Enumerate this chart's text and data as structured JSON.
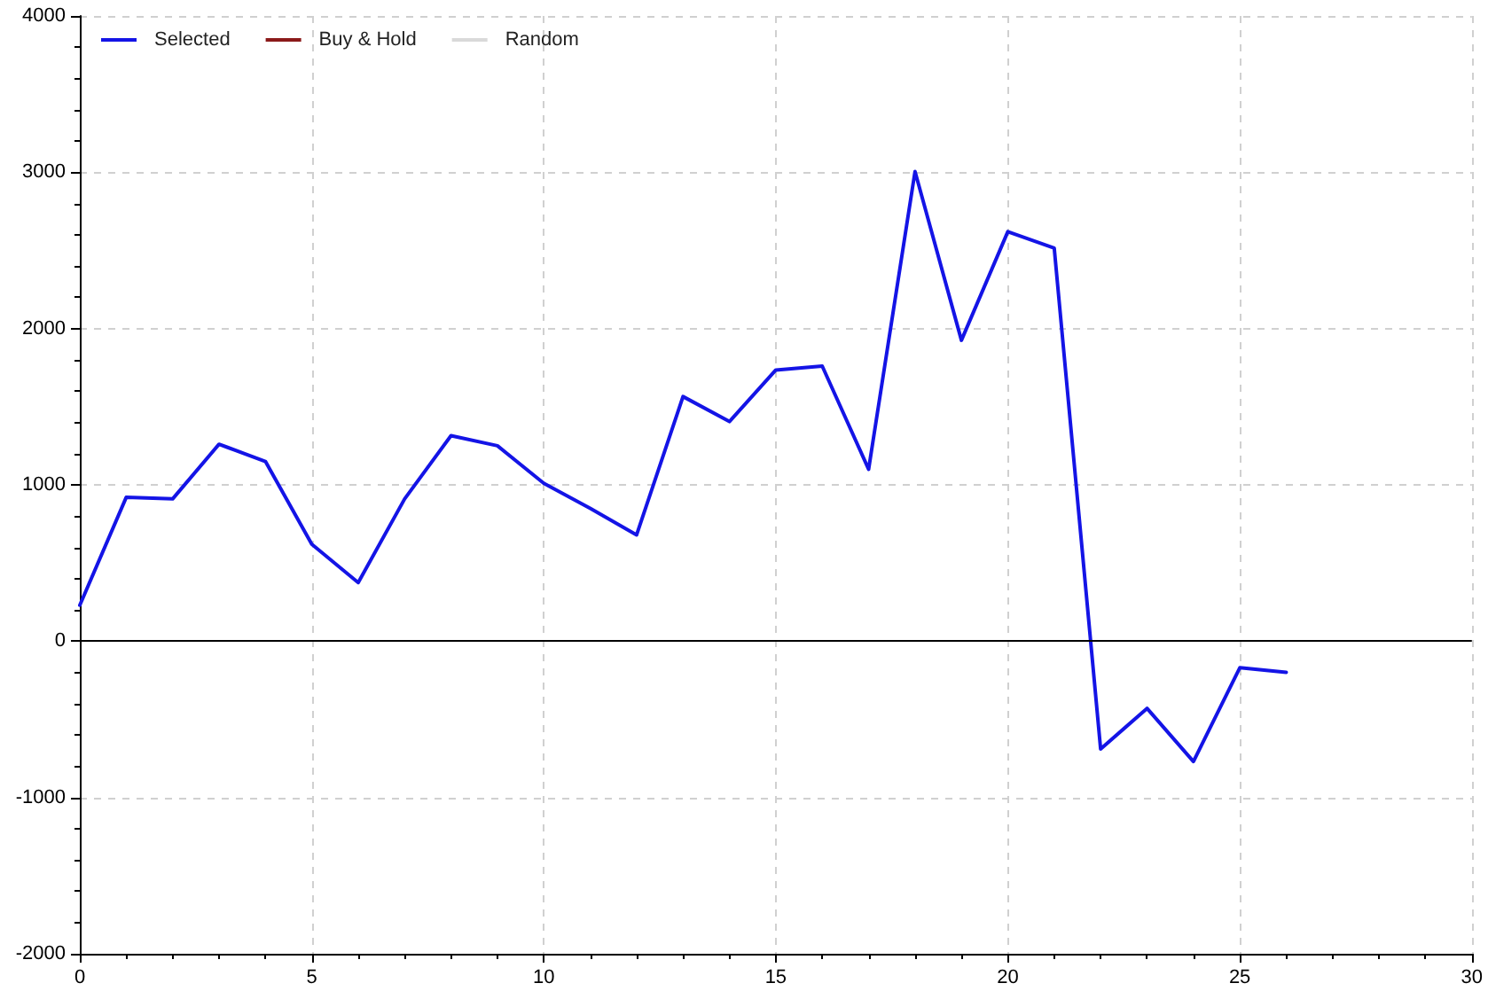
{
  "chart_data": {
    "type": "line",
    "x": [
      0,
      1,
      2,
      3,
      4,
      5,
      6,
      7,
      8,
      9,
      10,
      11,
      12,
      13,
      14,
      15,
      16,
      17,
      18,
      19,
      20,
      21,
      22,
      23,
      24,
      25,
      26
    ],
    "series": [
      {
        "name": "Selected",
        "color": "#1414e6",
        "values": [
          230,
          920,
          910,
          1260,
          1150,
          620,
          375,
          910,
          1315,
          1250,
          1010,
          850,
          680,
          1565,
          1405,
          1735,
          1760,
          1100,
          3005,
          1925,
          2620,
          2515,
          -690,
          -430,
          -770,
          -170,
          -200
        ]
      },
      {
        "name": "Buy & Hold",
        "color": "#8b1a1a",
        "values": [
          null,
          null,
          null,
          null,
          null,
          null,
          null,
          null,
          null,
          null,
          null,
          null,
          null,
          null,
          null,
          null,
          null,
          null,
          null,
          null,
          null,
          null,
          null,
          null,
          null,
          null,
          null
        ]
      },
      {
        "name": "Random",
        "color": "#d9d9d9",
        "values": [
          null,
          null,
          null,
          null,
          null,
          null,
          null,
          null,
          null,
          null,
          null,
          null,
          null,
          null,
          null,
          null,
          null,
          null,
          null,
          null,
          null,
          null,
          null,
          null,
          null,
          null,
          null
        ]
      }
    ],
    "xlim": [
      0,
      30
    ],
    "xticks": [
      0,
      5,
      10,
      15,
      20,
      25,
      30
    ],
    "ylim": [
      -2000,
      4000
    ],
    "yticks": [
      -2000,
      -1000,
      0,
      1000,
      2000,
      3000,
      4000
    ],
    "ref_lines": [
      {
        "axis": "y",
        "value": 0,
        "color": "#000000"
      }
    ],
    "grid": true,
    "legend": "top left",
    "marker": "none",
    "line_style": "solid"
  }
}
